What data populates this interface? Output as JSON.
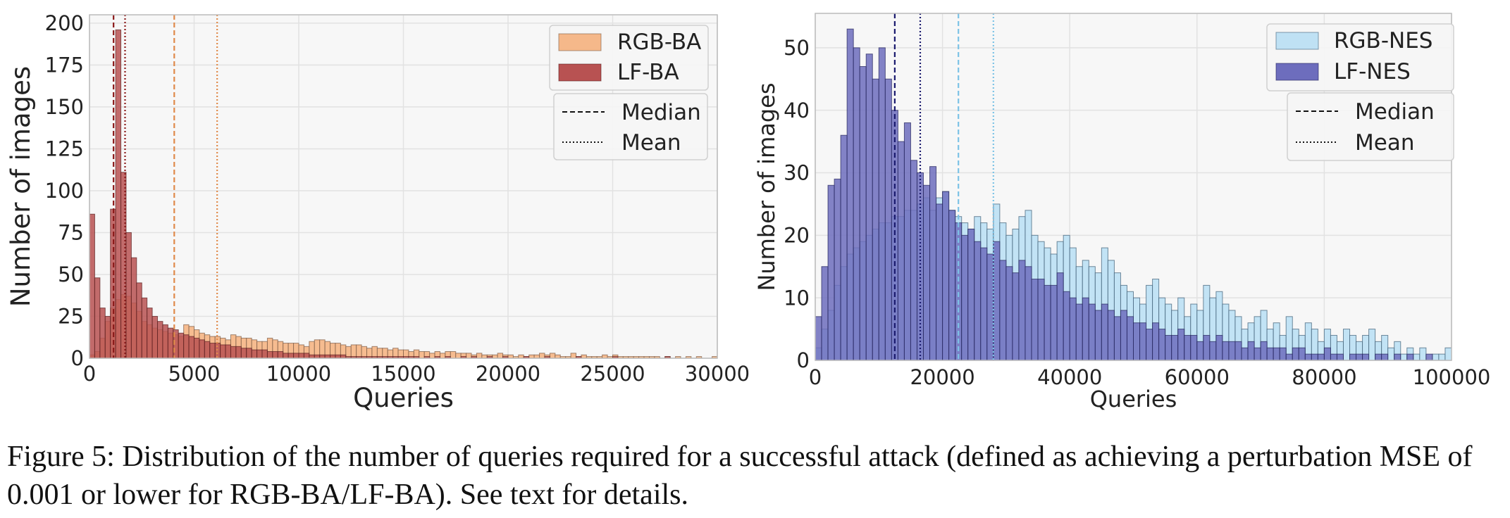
{
  "figure": {
    "caption": "Figure 5: Distribution of the number of queries required for a successful attack (defined as achieving a perturbation MSE of 0.001 or lower for RGB-BA/LF-BA). See text for details."
  },
  "chart_data": [
    {
      "type": "bar",
      "subtype": "histogram",
      "xlabel": "Queries",
      "ylabel": "Number of images",
      "xlim": [
        0,
        30000
      ],
      "ylim": [
        0,
        205
      ],
      "xticks": [
        0,
        5000,
        10000,
        15000,
        20000,
        25000,
        30000
      ],
      "yticks": [
        0,
        25,
        50,
        75,
        100,
        125,
        150,
        175,
        200
      ],
      "grid": true,
      "legend_position": "top-right",
      "bin_width": 250,
      "series": [
        {
          "name": "RGB-BA",
          "color": "#f5b88a",
          "edge": "#7a5a45",
          "values": [
            2,
            4,
            12,
            22,
            30,
            35,
            38,
            37,
            33,
            28,
            22,
            20,
            18,
            17,
            16,
            15,
            14,
            13,
            20,
            19,
            17,
            15,
            14,
            13,
            13,
            12,
            11,
            14,
            13,
            12,
            12,
            11,
            10,
            10,
            12,
            11,
            10,
            9,
            9,
            9,
            8,
            7,
            10,
            11,
            11,
            10,
            9,
            9,
            8,
            7,
            8,
            8,
            7,
            6,
            7,
            6,
            6,
            5,
            6,
            5,
            5,
            4,
            5,
            4,
            4,
            3,
            4,
            3,
            4,
            4,
            3,
            3,
            3,
            2,
            3,
            2,
            2,
            2,
            3,
            2,
            2,
            1,
            2,
            1,
            2,
            2,
            3,
            2,
            3,
            2,
            1,
            1,
            3,
            1,
            2,
            1,
            1,
            1,
            2,
            1,
            2,
            1,
            1,
            1,
            1,
            1,
            1,
            1,
            1,
            0,
            1,
            0,
            1,
            0,
            1,
            0,
            1,
            0,
            0,
            1
          ]
        },
        {
          "name": "LF-BA",
          "color": "#b85252",
          "edge": "#5a1f1f",
          "values": [
            86,
            48,
            30,
            25,
            89,
            196,
            111,
            75,
            60,
            45,
            36,
            30,
            25,
            22,
            20,
            18,
            17,
            15,
            14,
            13,
            12,
            11,
            10,
            9,
            9,
            8,
            8,
            7,
            7,
            6,
            6,
            5,
            5,
            5,
            4,
            4,
            4,
            3,
            3,
            3,
            3,
            3,
            2,
            2,
            2,
            2,
            2,
            2,
            2,
            1,
            1,
            1,
            1,
            1,
            1,
            1,
            1,
            1,
            1,
            1,
            1,
            1,
            1,
            0,
            1,
            0,
            1,
            0,
            1,
            0,
            0,
            1,
            0,
            1,
            0,
            0,
            1,
            0,
            0,
            1,
            0,
            0,
            0,
            1,
            0,
            0,
            0,
            1,
            0,
            0,
            0,
            0,
            0,
            1,
            0,
            0,
            0,
            0,
            0,
            0,
            1,
            0,
            0,
            0,
            0,
            0,
            0,
            0,
            0,
            0,
            1,
            0,
            0,
            0,
            0,
            0,
            0,
            0,
            0,
            0
          ]
        }
      ],
      "vlines": [
        {
          "label": "Median",
          "series": "LF-BA",
          "x": 1150,
          "style": "dashed",
          "color": "#8b1a1a"
        },
        {
          "label": "Mean",
          "series": "LF-BA",
          "x": 1700,
          "style": "dotted",
          "color": "#8b1a1a"
        },
        {
          "label": "Median",
          "series": "RGB-BA",
          "x": 4050,
          "style": "dashed",
          "color": "#e08a4a"
        },
        {
          "label": "Mean",
          "series": "RGB-BA",
          "x": 6100,
          "style": "dotted",
          "color": "#e08a4a"
        }
      ],
      "line_legend": [
        "Median",
        "Mean"
      ]
    },
    {
      "type": "bar",
      "subtype": "histogram",
      "xlabel": "Queries",
      "ylabel": "Number of images",
      "xlim": [
        0,
        100000
      ],
      "ylim": [
        0,
        55.5
      ],
      "xticks": [
        0,
        20000,
        40000,
        60000,
        80000,
        100000
      ],
      "yticks": [
        0,
        10,
        20,
        30,
        40,
        50
      ],
      "grid": true,
      "legend_position": "top-right",
      "bin_width": 1000,
      "series": [
        {
          "name": "RGB-NES",
          "color": "#bfe1f4",
          "edge": "#3c5b74",
          "values": [
            2,
            5,
            8,
            12,
            15,
            17,
            18,
            19,
            20,
            21,
            22,
            22,
            23,
            23,
            24,
            24,
            25,
            26,
            24,
            26,
            27,
            24,
            23,
            22,
            21,
            23,
            22,
            21,
            25,
            22,
            20,
            21,
            23,
            24,
            20,
            19,
            18,
            17,
            19,
            20,
            18,
            15,
            16,
            15,
            14,
            18,
            16,
            14,
            12,
            11,
            10,
            9,
            12,
            13,
            10,
            9,
            8,
            10,
            7,
            9,
            8,
            12,
            10,
            11,
            9,
            8,
            7,
            5,
            6,
            7,
            8,
            5,
            6,
            4,
            7,
            5,
            4,
            6,
            5,
            3,
            5,
            4,
            3,
            5,
            4,
            3,
            4,
            5,
            3,
            4,
            2,
            3,
            1,
            2,
            1,
            2,
            0,
            1,
            1,
            2
          ]
        },
        {
          "name": "LF-NES",
          "color": "#6d6dbd",
          "edge": "#22225a",
          "values": [
            7,
            15,
            28,
            29,
            36,
            53,
            50,
            47,
            49,
            45,
            50,
            45,
            40,
            35,
            38,
            32,
            30,
            28,
            31,
            25,
            27,
            24,
            22,
            20,
            21,
            19,
            18,
            17,
            19,
            16,
            15,
            14,
            16,
            15,
            13,
            13,
            12,
            12,
            14,
            11,
            10,
            9,
            10,
            9,
            8,
            9,
            8,
            7,
            8,
            7,
            6,
            6,
            5,
            6,
            5,
            4,
            4,
            5,
            4,
            4,
            3,
            4,
            3,
            4,
            3,
            3,
            3,
            2,
            3,
            2,
            3,
            2,
            2,
            2,
            1,
            2,
            2,
            1,
            1,
            1,
            2,
            1,
            1,
            0,
            1,
            1,
            1,
            0,
            1,
            1,
            0,
            1,
            0,
            1,
            0,
            0,
            1,
            0,
            0,
            0
          ]
        }
      ],
      "vlines": [
        {
          "label": "Median",
          "series": "LF-NES",
          "x": 12500,
          "style": "dashed",
          "color": "#1a1a6e"
        },
        {
          "label": "Mean",
          "series": "LF-NES",
          "x": 16500,
          "style": "dotted",
          "color": "#1a1a6e"
        },
        {
          "label": "Median",
          "series": "RGB-NES",
          "x": 22500,
          "style": "dashed",
          "color": "#7cc3e6"
        },
        {
          "label": "Mean",
          "series": "RGB-NES",
          "x": 28000,
          "style": "dotted",
          "color": "#7cc3e6"
        }
      ],
      "line_legend": [
        "Median",
        "Mean"
      ]
    }
  ]
}
